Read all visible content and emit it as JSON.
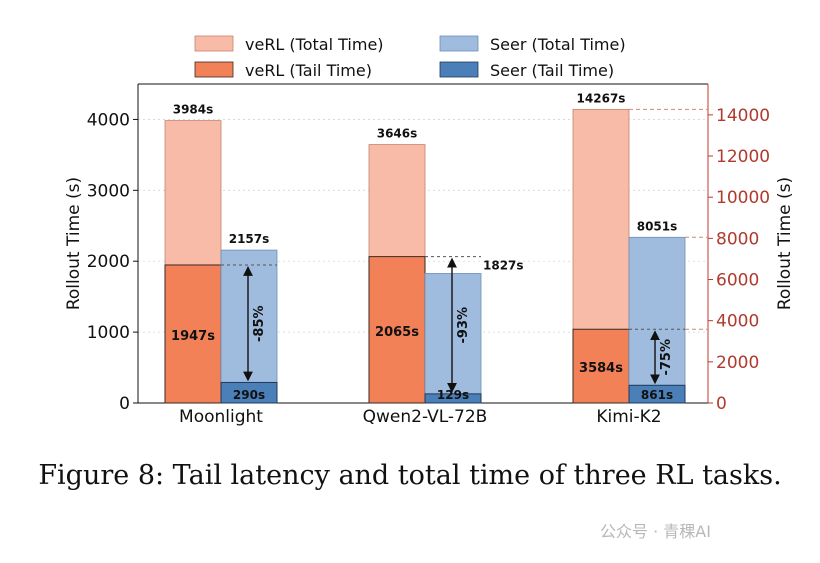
{
  "caption": "Figure 8: Tail latency and total time of three RL tasks.",
  "watermark": "公众号 · 青稞AI",
  "chart_data": {
    "type": "bar",
    "categories": [
      "Moonlight",
      "Qwen2-VL-72B",
      "Kimi-K2"
    ],
    "ylabel": "Rollout Time (s)",
    "ylabel_right": "Rollout Time (s)",
    "ylim_left": [
      0,
      4500
    ],
    "yticks_left": [
      0,
      1000,
      2000,
      3000,
      4000
    ],
    "ylim_right": [
      0,
      15500
    ],
    "yticks_right": [
      0,
      2000,
      4000,
      6000,
      8000,
      10000,
      12000,
      14000
    ],
    "right_axis_applies_to": "Kimi-K2",
    "series": [
      {
        "name": "veRL (Total Time)",
        "color": "#f8bba8",
        "values": [
          3984,
          3646,
          14267
        ],
        "labels": [
          "3984s",
          "3646s",
          "14267s"
        ]
      },
      {
        "name": "Seer (Total Time)",
        "color": "#9fbbdd",
        "values": [
          2157,
          1827,
          8051
        ],
        "labels": [
          "2157s",
          "1827s",
          "8051s"
        ]
      },
      {
        "name": "veRL (Tail Time)",
        "color": "#f28158",
        "values": [
          1947,
          2065,
          3584
        ],
        "labels": [
          "1947s",
          "2065s",
          "3584s"
        ]
      },
      {
        "name": "Seer (Tail Time)",
        "color": "#4a7fb8",
        "values": [
          290,
          129,
          861
        ],
        "labels": [
          "290s",
          "129s",
          "861s"
        ]
      }
    ],
    "reductions": [
      "-85%",
      "-93%",
      "-75%"
    ],
    "legend_position": "top",
    "grid": "horizontal dotted"
  }
}
